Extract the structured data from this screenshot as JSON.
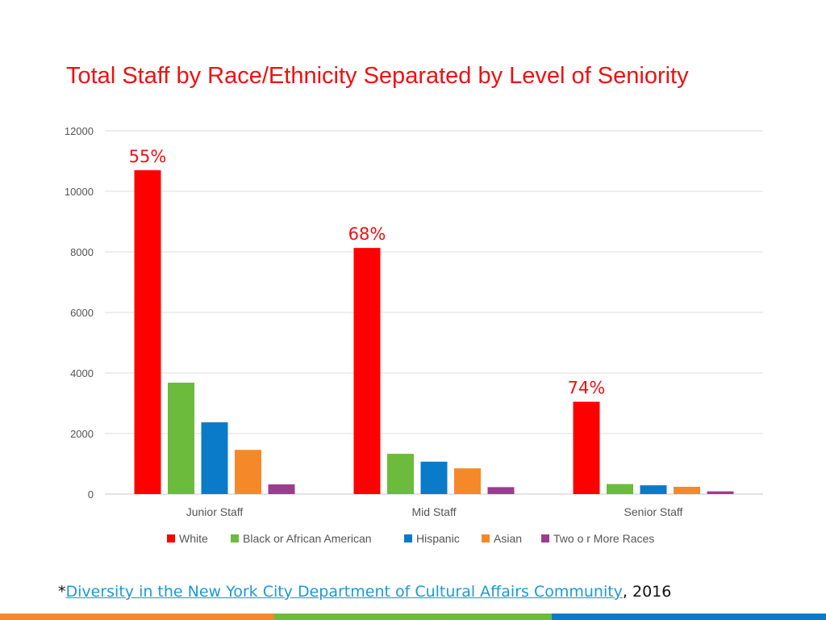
{
  "chart_data": {
    "type": "bar",
    "title": "Total Staff by Race/Ethnicity Separated by Level of Seniority",
    "categories": [
      "Junior Staff",
      "Mid Staff",
      "Senior Staff"
    ],
    "series": [
      {
        "name": "White",
        "color": "#ff0000",
        "values": [
          10700,
          8130,
          3050
        ]
      },
      {
        "name": "Black or African American",
        "color": "#6cbb3c",
        "values": [
          3680,
          1330,
          330
        ]
      },
      {
        "name": "Hispanic",
        "color": "#0a7bc9",
        "values": [
          2370,
          1070,
          290
        ]
      },
      {
        "name": "Asian",
        "color": "#f5892a",
        "values": [
          1460,
          850,
          240
        ]
      },
      {
        "name": "Two o r More Races",
        "color": "#9b3d8f",
        "values": [
          320,
          230,
          90
        ]
      }
    ],
    "annotations": [
      "55%",
      "68%",
      "74%"
    ],
    "annotation_color": "#ee1111",
    "ylim": [
      0,
      12000
    ],
    "yticks": [
      0,
      2000,
      4000,
      6000,
      8000,
      10000,
      12000
    ],
    "grid": true,
    "legend": "bottom",
    "xlabel": "",
    "ylabel": ""
  },
  "footnote": {
    "prefix": "*",
    "link_text": "Diversity in the New York City Department of Cultural Affairs Community",
    "suffix": ", 2016"
  },
  "bottom_bar_colors": [
    "#f5892a",
    "#6cbb3c",
    "#0a7bc9"
  ]
}
